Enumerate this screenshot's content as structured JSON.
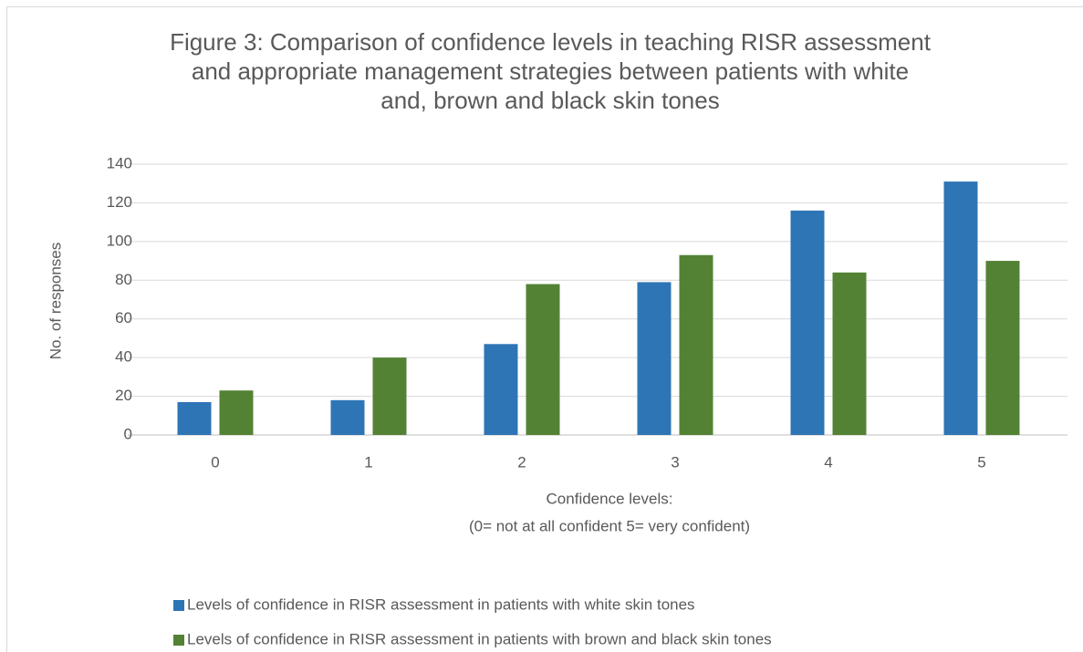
{
  "chart_data": {
    "type": "bar",
    "title": [
      "Figure 3: Comparison of confidence levels in teaching RISR assessment",
      "and appropriate management strategies between patients with white",
      "and, brown and black skin tones"
    ],
    "x_label": [
      "Confidence levels:",
      "(0= not at all confident 5= very confident)"
    ],
    "y_label": "No. of responses",
    "categories": [
      "0",
      "1",
      "2",
      "3",
      "4",
      "5"
    ],
    "series": [
      {
        "name": "Levels of confidence in RISR assessment in patients with white skin tones",
        "color": "#2e75b6",
        "values": [
          17,
          18,
          47,
          79,
          116,
          131
        ]
      },
      {
        "name": "Levels of confidence in RISR assessment in patients with brown and black skin tones",
        "color": "#548235",
        "values": [
          23,
          40,
          78,
          93,
          84,
          90
        ]
      }
    ],
    "ylim": [
      0,
      140
    ],
    "yticks": [
      0,
      20,
      40,
      60,
      80,
      100,
      120,
      140
    ],
    "grid": true,
    "legend": "bottom"
  }
}
